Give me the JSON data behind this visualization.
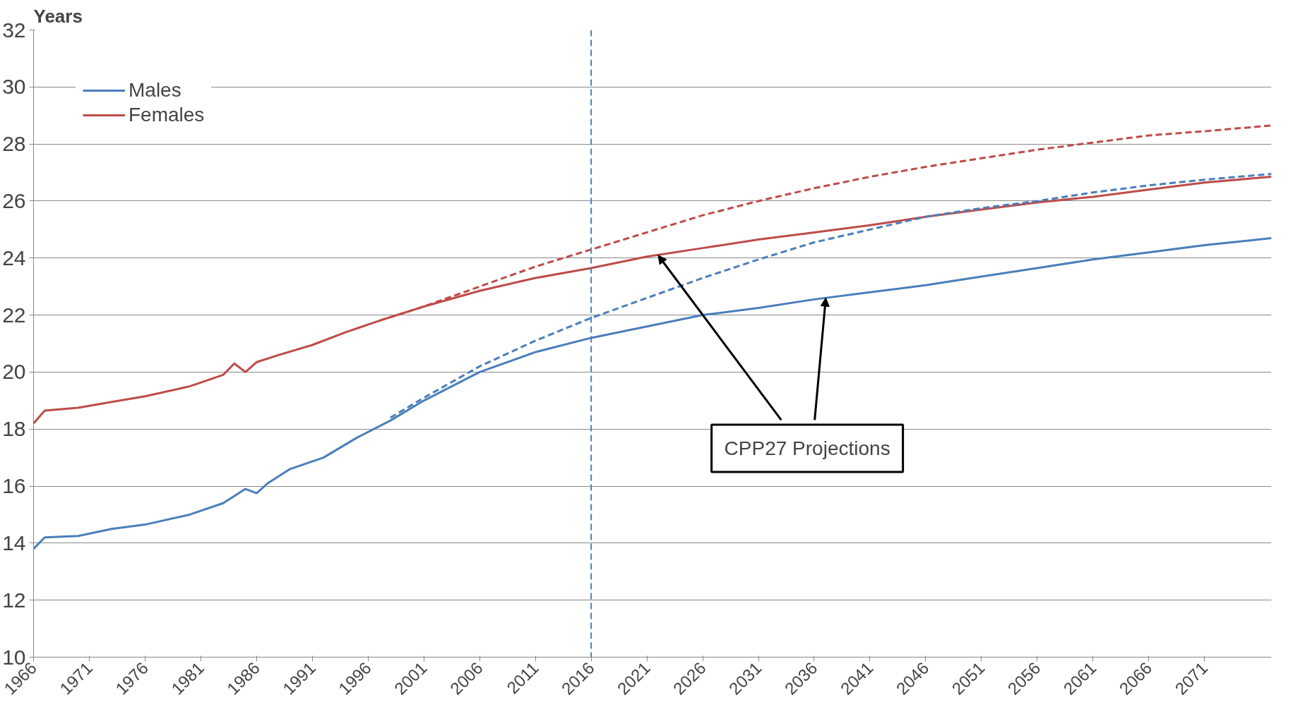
{
  "chart_data": {
    "type": "line",
    "ylabel": "Years",
    "xlim": [
      1966,
      2077
    ],
    "xticks": [
      1966,
      1971,
      1976,
      1981,
      1986,
      1991,
      1996,
      2001,
      2006,
      2011,
      2016,
      2021,
      2026,
      2031,
      2036,
      2041,
      2046,
      2051,
      2056,
      2061,
      2066,
      2071
    ],
    "ylim": [
      10,
      32
    ],
    "yticks": [
      10,
      12,
      14,
      16,
      18,
      20,
      22,
      24,
      26,
      28,
      30,
      32
    ],
    "grid": "y",
    "legend": "top left",
    "series": [
      {
        "name": "Males",
        "color": "#4a7ebb",
        "line_style": "solid",
        "x": [
          1966,
          1967,
          1970,
          1973,
          1976,
          1980,
          1983,
          1985,
          1986,
          1987,
          1989,
          1992,
          1995,
          1998,
          2001,
          2006,
          2011,
          2016,
          2021,
          2026,
          2031,
          2036,
          2041,
          2046,
          2051,
          2056,
          2061,
          2066,
          2071,
          2077
        ],
        "values": [
          13.8,
          14.2,
          14.25,
          14.5,
          14.65,
          15.0,
          15.4,
          15.9,
          15.75,
          16.1,
          16.6,
          17.0,
          17.7,
          18.3,
          19.0,
          20.0,
          20.7,
          21.2,
          21.6,
          22.0,
          22.25,
          22.55,
          22.8,
          23.05,
          23.35,
          23.65,
          23.95,
          24.2,
          24.45,
          24.7
        ]
      },
      {
        "name": "Females",
        "color": "#be4b48",
        "line_style": "solid",
        "x": [
          1966,
          1967,
          1970,
          1973,
          1976,
          1980,
          1983,
          1984,
          1985,
          1986,
          1988,
          1991,
          1994,
          1997,
          2001,
          2006,
          2011,
          2016,
          2021,
          2026,
          2031,
          2036,
          2041,
          2046,
          2051,
          2056,
          2061,
          2066,
          2071,
          2077
        ],
        "values": [
          18.2,
          18.65,
          18.75,
          18.95,
          19.15,
          19.5,
          19.9,
          20.3,
          20.0,
          20.35,
          20.6,
          20.95,
          21.4,
          21.8,
          22.3,
          22.85,
          23.3,
          23.65,
          24.05,
          24.35,
          24.65,
          24.9,
          25.15,
          25.45,
          25.7,
          25.95,
          26.15,
          26.4,
          26.65,
          26.85
        ]
      },
      {
        "color": "#be4b48",
        "line_style": "dashed",
        "x": [
          1997,
          2001,
          2006,
          2011,
          2016,
          2021,
          2026,
          2031,
          2036,
          2041,
          2046,
          2051,
          2056,
          2061,
          2066,
          2071,
          2077
        ],
        "values": [
          21.8,
          22.3,
          23.0,
          23.7,
          24.3,
          24.9,
          25.5,
          26.0,
          26.45,
          26.85,
          27.2,
          27.5,
          27.8,
          28.05,
          28.3,
          28.45,
          28.65
        ]
      },
      {
        "color": "#4a7ebb",
        "line_style": "dashed",
        "x": [
          1998,
          2001,
          2006,
          2011,
          2016,
          2021,
          2026,
          2031,
          2036,
          2041,
          2046,
          2051,
          2056,
          2061,
          2066,
          2071,
          2077
        ],
        "values": [
          18.4,
          19.1,
          20.2,
          21.1,
          21.9,
          22.6,
          23.3,
          23.95,
          24.55,
          25.0,
          25.45,
          25.75,
          26.0,
          26.3,
          26.55,
          26.75,
          26.95
        ]
      }
    ],
    "ref_lines": [
      {
        "axis": "x",
        "value": 2016,
        "color": "#4a7ebb",
        "line_style": "dashed"
      }
    ],
    "annotations": [
      {
        "text": "CPP27 Projections",
        "x": 2022,
        "y": 24.1
      }
    ]
  }
}
